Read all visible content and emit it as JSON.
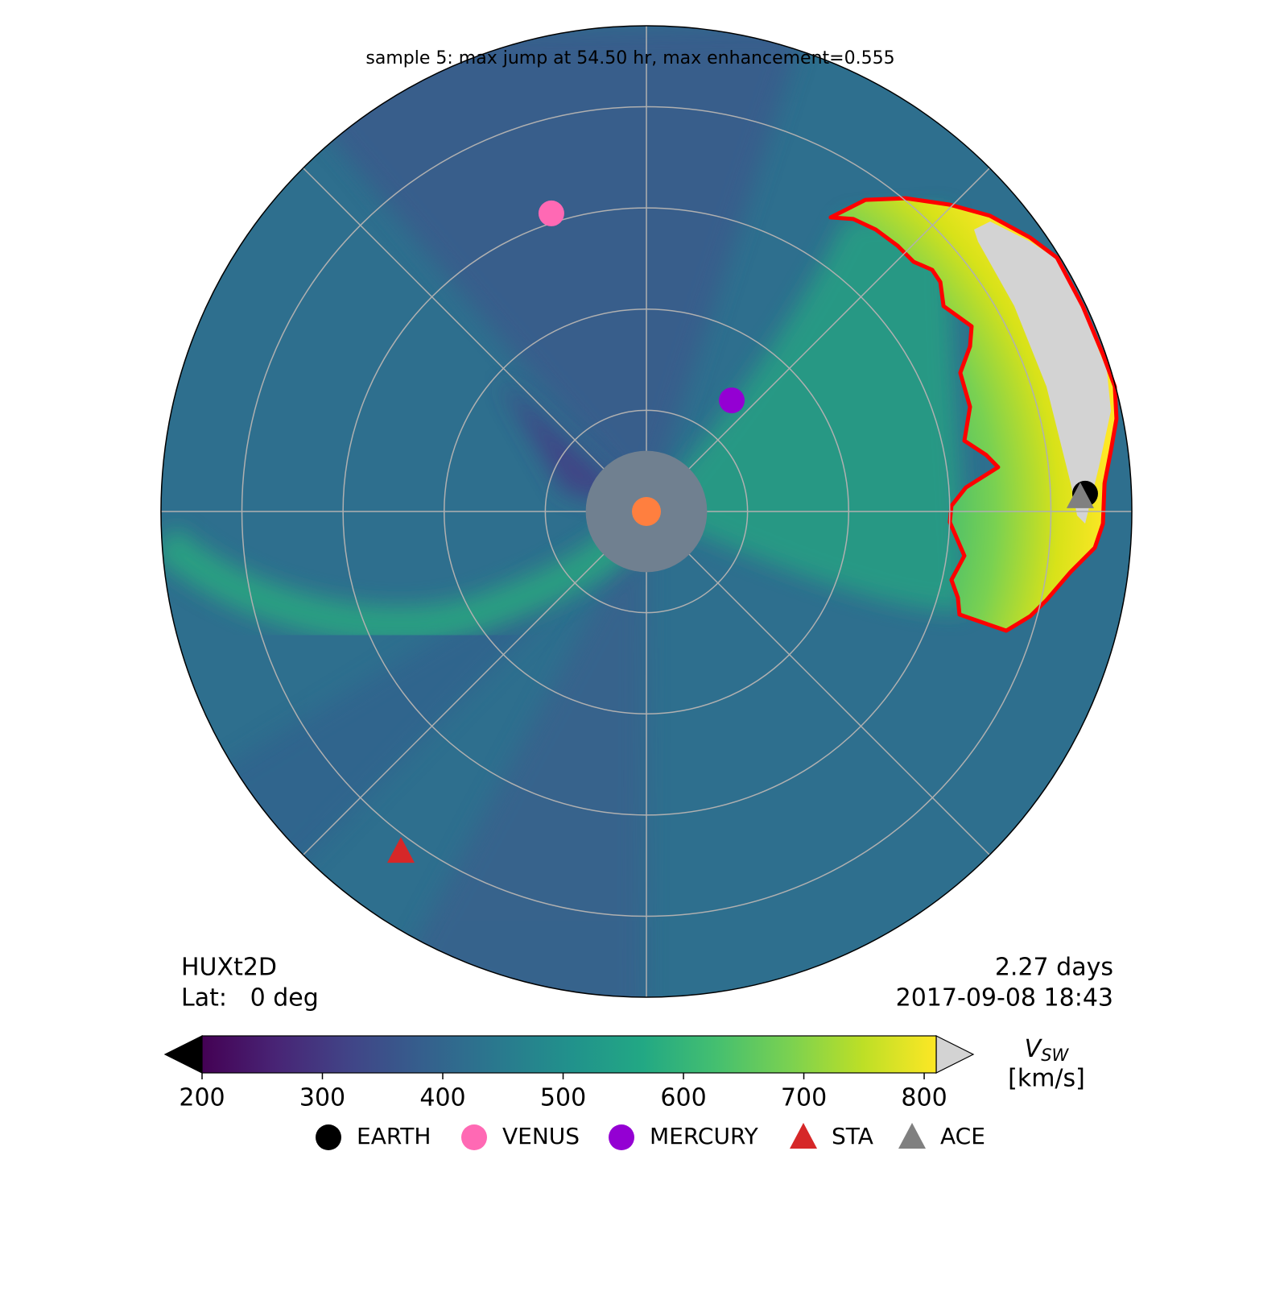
{
  "chart_data": {
    "type": "polar",
    "title": "sample 5: max jump at 54.50 hr, max enhancement=0.555",
    "model": "HUXt2D",
    "latitude_label": "Lat:   0 deg",
    "elapsed": "2.27 days",
    "time": "2017-09-08 18:43",
    "rlim": [
      0,
      240
    ],
    "rticks": [
      50,
      100,
      150,
      200
    ],
    "theta_grid": [
      0,
      45,
      90,
      135,
      180,
      225,
      270,
      315
    ],
    "inner_boundary": 30,
    "grid": true,
    "bodies": [
      {
        "name": "EARTH",
        "color": "#000000",
        "marker": "circle",
        "x": 216.9,
        "y": 8.8
      },
      {
        "name": "VENUS",
        "color": "#ff69b4",
        "marker": "circle",
        "x": -47.0,
        "y": 147.3
      },
      {
        "name": "MERCURY",
        "color": "#9400d3",
        "marker": "circle",
        "x": 42.2,
        "y": 54.9
      },
      {
        "name": "STA",
        "color": "#d62728",
        "marker": "triangle",
        "x": -121.4,
        "y": -168.0
      },
      {
        "name": "ACE",
        "color": "#808080",
        "marker": "triangle",
        "x": 214.5,
        "y": 7.2
      }
    ],
    "cme_boundary": {
      "color": "#ff0000",
      "x": [
        91.1,
        108.3,
        128.2,
        150.0,
        169.9,
        189.8,
        203.0,
        215.7,
        225.7,
        231.6,
        232.4,
        229.6,
        226.5,
        225.7,
        221.7,
        209.7,
        197.8,
        189.8,
        177.9,
        154.8,
        154.0,
        150.8,
        157.2,
        150.0,
        150.8,
        158.0,
        173.9,
        168.0,
        157.2,
        160.0,
        155.2,
        160.0,
        160.8,
        146.9,
        145.3,
        141.3,
        132.1,
        124.2,
        113.4,
        102.3
      ],
      "y": [
        145.3,
        154.0,
        154.8,
        151.6,
        146.1,
        135.3,
        125.4,
        101.5,
        77.6,
        61.7,
        45.8,
        29.9,
        13.9,
        -6.0,
        -17.9,
        -29.9,
        -43.8,
        -51.7,
        -58.9,
        -50.9,
        -42.6,
        -33.8,
        -21.9,
        -5.2,
        2.8,
        11.9,
        21.9,
        27.9,
        35.0,
        51.7,
        68.5,
        81.6,
        91.5,
        101.5,
        113.4,
        119.4,
        123.4,
        131.3,
        139.3,
        144.5
      ]
    },
    "colorbar": {
      "colormap": "viridis",
      "lim": [
        200,
        810
      ],
      "ticks": [
        200,
        300,
        400,
        500,
        600,
        700,
        800
      ],
      "under_color": "#000000",
      "over_color": "#d3d3d3",
      "label": "V",
      "label_sub": "SW",
      "units": "[km/s]"
    }
  }
}
